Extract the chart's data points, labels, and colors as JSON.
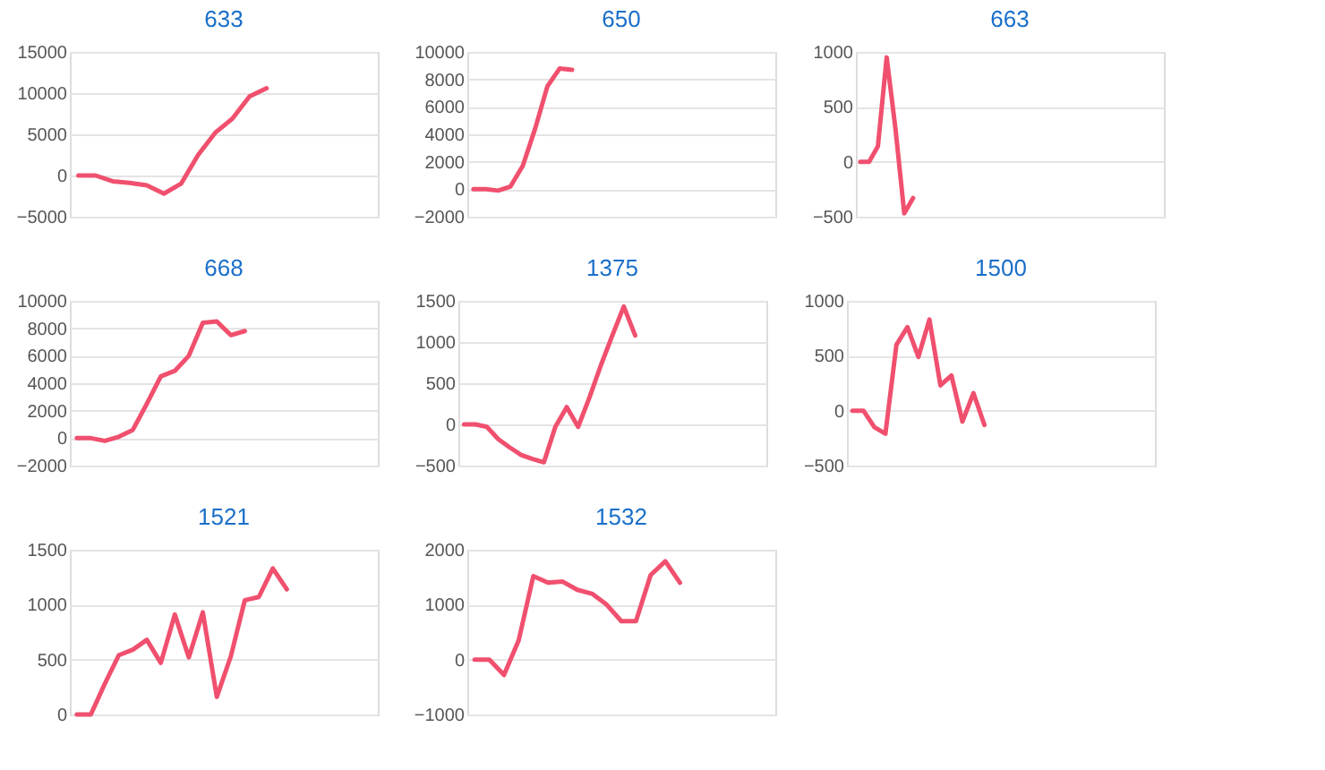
{
  "chart_data": [
    {
      "type": "line",
      "title": "633",
      "categories": [
        null,
        null,
        null,
        null,
        null,
        null,
        null,
        null,
        null,
        null,
        null,
        null,
        null,
        null,
        null,
        null,
        null,
        null
      ],
      "series": [
        {
          "color": "#f0506e",
          "values": [
            0,
            0,
            -700,
            -900,
            -1200,
            -2200,
            -1000,
            2500,
            5200,
            6900,
            9600,
            10600,
            null,
            null,
            null,
            null,
            null,
            null
          ]
        }
      ],
      "ylim": [
        -5000,
        15000
      ],
      "yticks": [
        -5000,
        0,
        5000,
        10000,
        15000
      ],
      "grid": "y",
      "marker": "none",
      "line_style": "solid",
      "legend": false
    },
    {
      "type": "line",
      "title": "650",
      "categories": [
        null,
        null,
        null,
        null,
        null,
        null,
        null,
        null,
        null,
        null,
        null,
        null,
        null,
        null,
        null,
        null,
        null,
        null,
        null,
        null,
        null,
        null,
        null,
        null,
        null
      ],
      "series": [
        {
          "color": "#f0506e",
          "values": [
            0,
            0,
            -100,
            200,
            1700,
            4400,
            7500,
            8800,
            8700,
            null,
            null,
            null,
            null,
            null,
            null,
            null,
            null,
            null,
            null,
            null,
            null,
            null,
            null,
            null,
            null
          ]
        }
      ],
      "ylim": [
        -2000,
        10000
      ],
      "yticks": [
        -2000,
        0,
        2000,
        4000,
        6000,
        8000,
        10000
      ],
      "grid": "y",
      "marker": "none",
      "line_style": "solid",
      "legend": false
    },
    {
      "type": "line",
      "title": "663",
      "categories": [
        null,
        null,
        null,
        null,
        null,
        null,
        null,
        null,
        null,
        null,
        null,
        null,
        null,
        null,
        null,
        null,
        null,
        null,
        null,
        null,
        null,
        null,
        null,
        null,
        null,
        null,
        null,
        null,
        null,
        null,
        null,
        null,
        null,
        null,
        null
      ],
      "series": [
        {
          "color": "#f0506e",
          "values": [
            0,
            0,
            140,
            950,
            300,
            -470,
            -330,
            null,
            null,
            null,
            null,
            null,
            null,
            null,
            null,
            null,
            null,
            null,
            null,
            null,
            null,
            null,
            null,
            null,
            null,
            null,
            null,
            null,
            null,
            null,
            null,
            null,
            null,
            null,
            null
          ]
        }
      ],
      "ylim": [
        -500,
        1000
      ],
      "yticks": [
        -500,
        0,
        500,
        1000
      ],
      "grid": "y",
      "marker": "none",
      "line_style": "solid",
      "legend": false
    },
    {
      "type": "line",
      "title": "668",
      "categories": [
        null,
        null,
        null,
        null,
        null,
        null,
        null,
        null,
        null,
        null,
        null,
        null,
        null,
        null,
        null,
        null,
        null,
        null,
        null,
        null,
        null,
        null
      ],
      "series": [
        {
          "color": "#f0506e",
          "values": [
            0,
            0,
            -200,
            100,
            600,
            2500,
            4500,
            4900,
            6000,
            8400,
            8500,
            7500,
            7800,
            null,
            null,
            null,
            null,
            null,
            null,
            null,
            null,
            null
          ]
        }
      ],
      "ylim": [
        -2000,
        10000
      ],
      "yticks": [
        -2000,
        0,
        2000,
        4000,
        6000,
        8000,
        10000
      ],
      "grid": "y",
      "marker": "none",
      "line_style": "solid",
      "legend": false
    },
    {
      "type": "line",
      "title": "1375",
      "categories": [
        null,
        null,
        null,
        null,
        null,
        null,
        null,
        null,
        null,
        null,
        null,
        null,
        null,
        null,
        null,
        null,
        null,
        null,
        null,
        null,
        null,
        null,
        null,
        null,
        null,
        null,
        null
      ],
      "series": [
        {
          "color": "#f0506e",
          "values": [
            0,
            0,
            -30,
            -180,
            -280,
            -370,
            -420,
            -460,
            -30,
            210,
            -30,
            330,
            720,
            1080,
            1430,
            1080,
            null,
            null,
            null,
            null,
            null,
            null,
            null,
            null,
            null,
            null,
            null
          ]
        }
      ],
      "ylim": [
        -500,
        1500
      ],
      "yticks": [
        -500,
        0,
        500,
        1000,
        1500
      ],
      "grid": "y",
      "marker": "none",
      "line_style": "solid",
      "legend": false
    },
    {
      "type": "line",
      "title": "1500",
      "categories": [
        null,
        null,
        null,
        null,
        null,
        null,
        null,
        null,
        null,
        null,
        null,
        null,
        null,
        null,
        null,
        null,
        null,
        null,
        null,
        null,
        null,
        null,
        null,
        null,
        null,
        null,
        null,
        null
      ],
      "series": [
        {
          "color": "#f0506e",
          "values": [
            0,
            0,
            -150,
            -210,
            600,
            760,
            490,
            830,
            230,
            320,
            -100,
            160,
            -130,
            null,
            null,
            null,
            null,
            null,
            null,
            null,
            null,
            null,
            null,
            null,
            null,
            null,
            null,
            null
          ]
        }
      ],
      "ylim": [
        -500,
        1000
      ],
      "yticks": [
        -500,
        0,
        500,
        1000
      ],
      "grid": "y",
      "marker": "none",
      "line_style": "solid",
      "legend": false
    },
    {
      "type": "line",
      "title": "1521",
      "categories": [
        null,
        null,
        null,
        null,
        null,
        null,
        null,
        null,
        null,
        null,
        null,
        null,
        null,
        null,
        null,
        null,
        null,
        null,
        null,
        null,
        null,
        null
      ],
      "series": [
        {
          "color": "#f0506e",
          "values": [
            0,
            0,
            280,
            540,
            590,
            680,
            470,
            910,
            520,
            930,
            160,
            530,
            1040,
            1070,
            1330,
            1140,
            null,
            null,
            null,
            null,
            null,
            null
          ]
        }
      ],
      "ylim": [
        0,
        1500
      ],
      "yticks": [
        0,
        500,
        1000,
        1500
      ],
      "grid": "y",
      "marker": "none",
      "line_style": "solid",
      "legend": false
    },
    {
      "type": "line",
      "title": "1532",
      "categories": [
        null,
        null,
        null,
        null,
        null,
        null,
        null,
        null,
        null,
        null,
        null,
        null,
        null,
        null,
        null,
        null,
        null,
        null,
        null,
        null,
        null
      ],
      "series": [
        {
          "color": "#f0506e",
          "values": [
            0,
            0,
            -280,
            350,
            1520,
            1400,
            1420,
            1270,
            1200,
            1000,
            700,
            700,
            1540,
            1790,
            1400,
            null,
            null,
            null,
            null,
            null,
            null
          ]
        }
      ],
      "ylim": [
        -1000,
        2000
      ],
      "yticks": [
        -1000,
        0,
        1000,
        2000
      ],
      "grid": "y",
      "marker": "none",
      "line_style": "solid",
      "legend": false
    }
  ]
}
